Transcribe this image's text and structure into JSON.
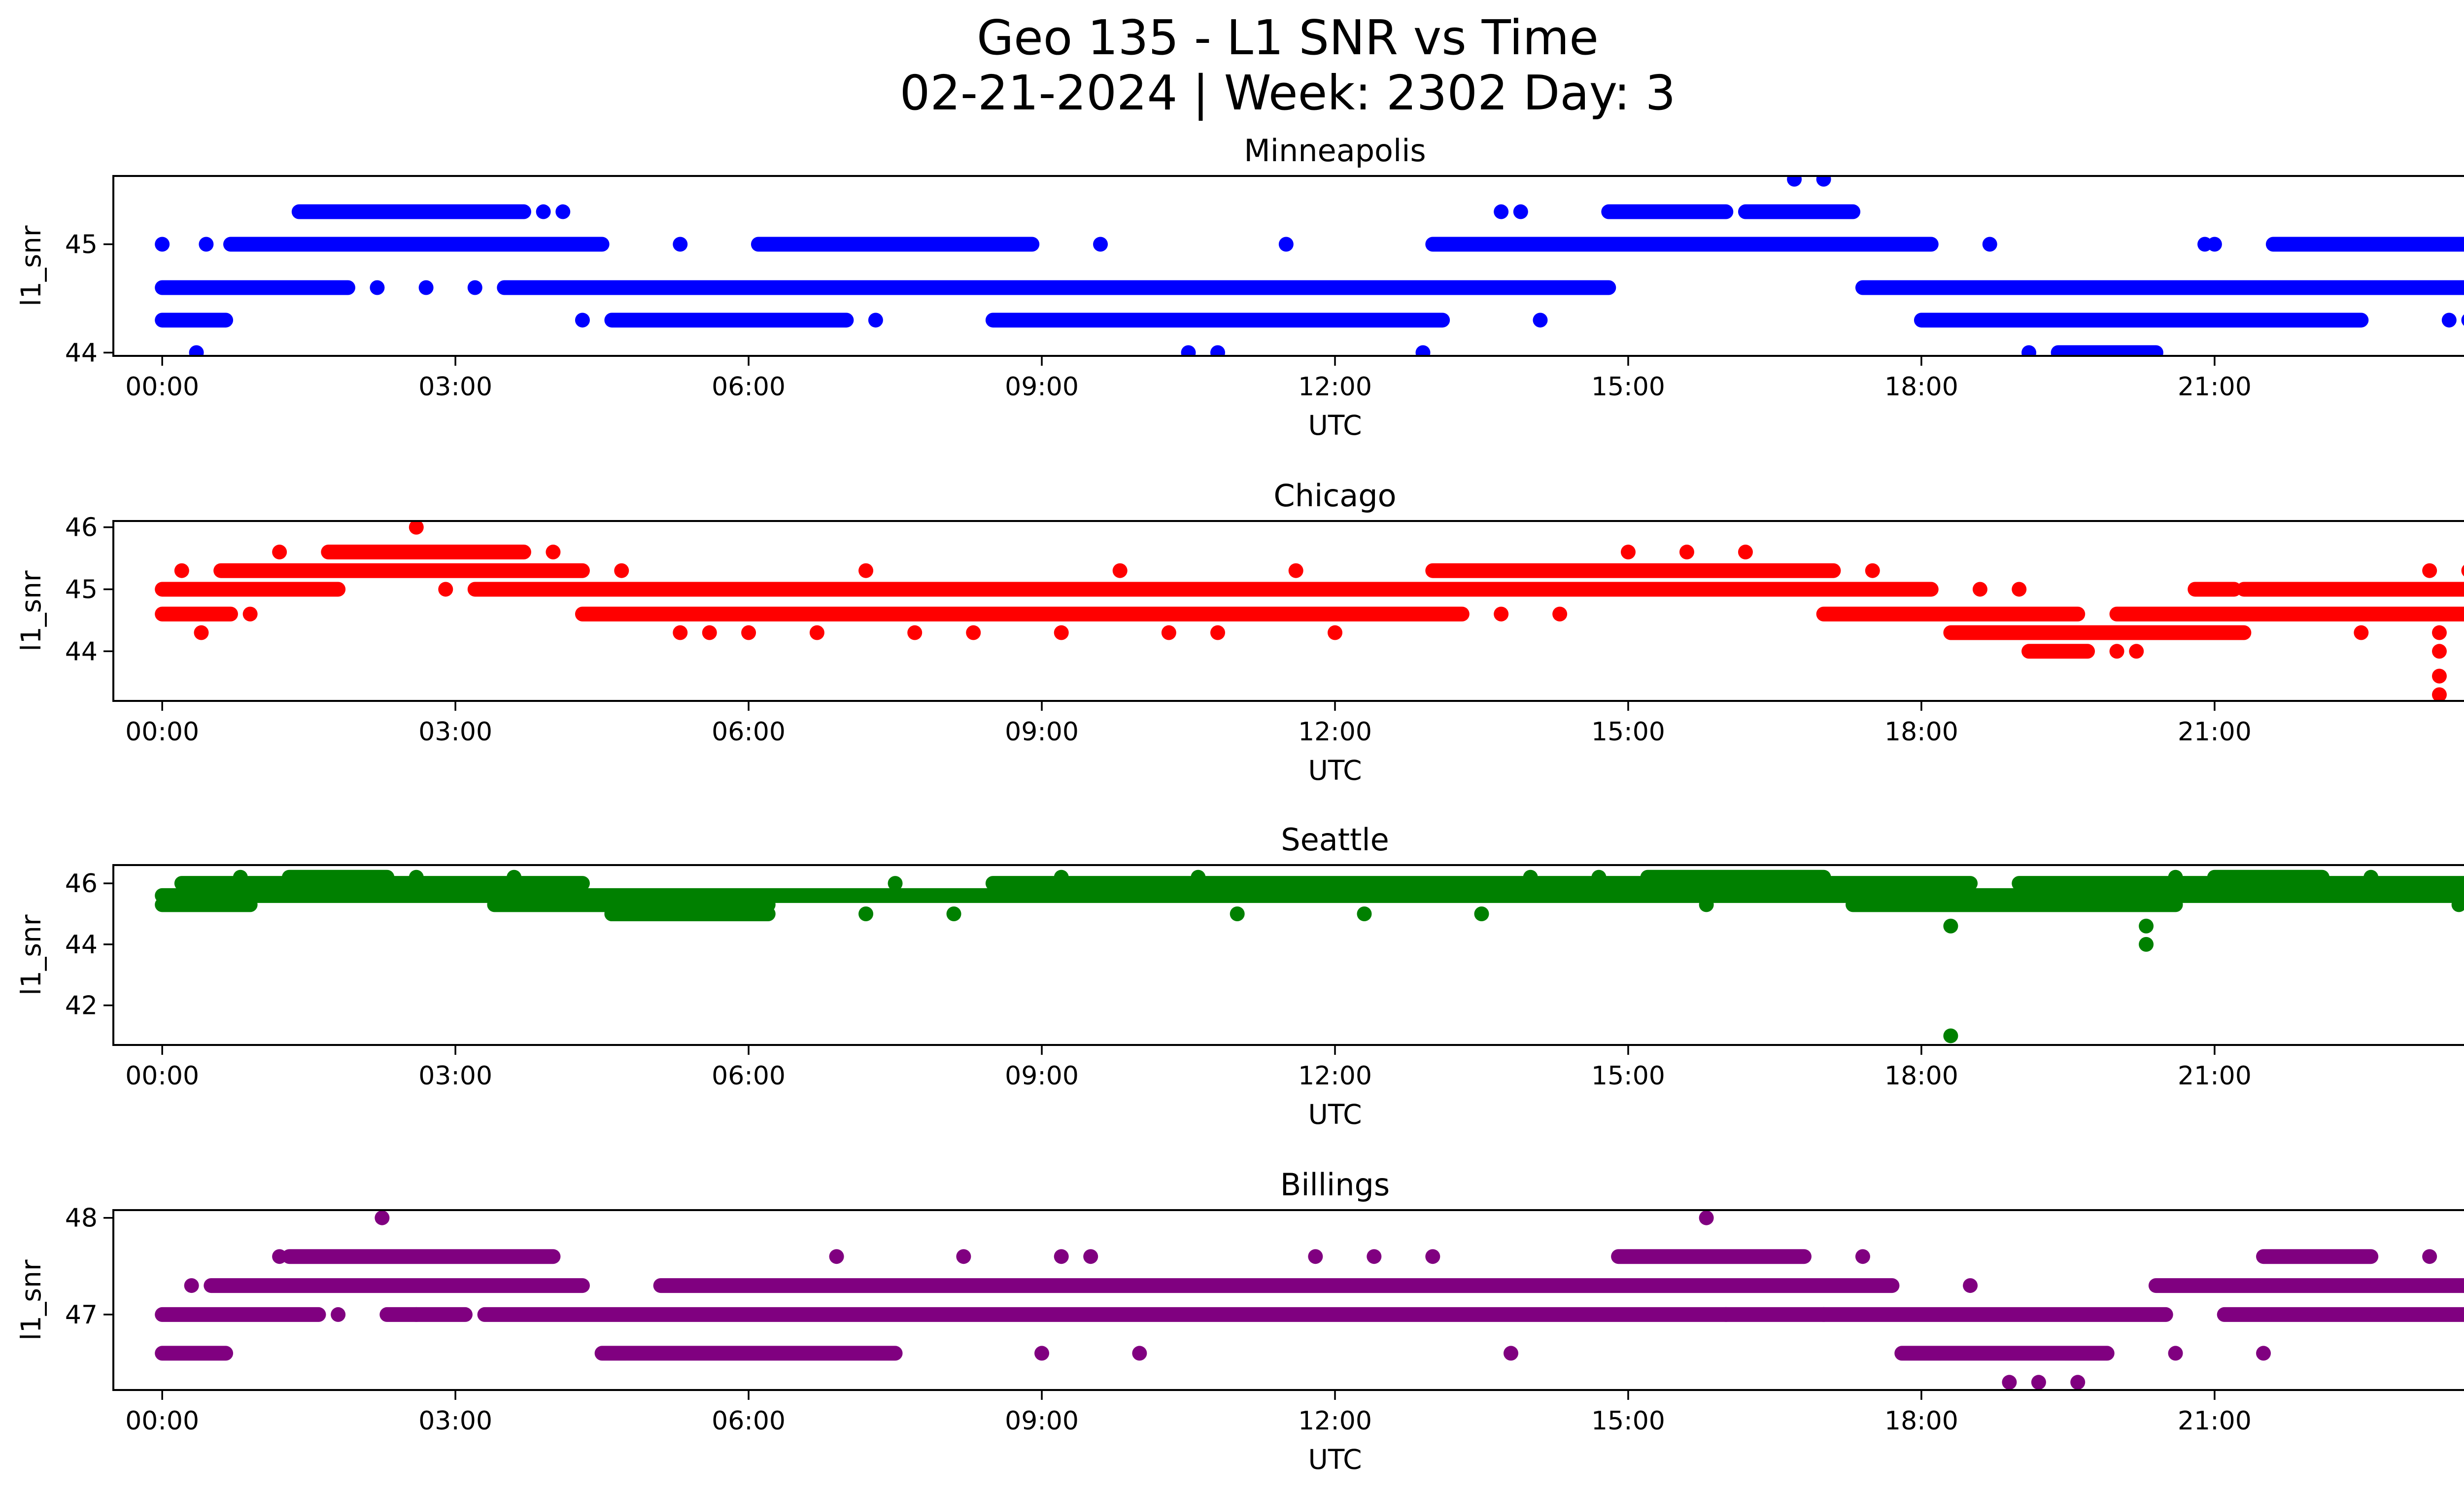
{
  "figure": {
    "title_line1": "Geo 135 - L1 SNR vs Time",
    "title_line2": "02-21-2024 | Week: 2302 Day: 3"
  },
  "chart_data": [
    {
      "type": "scatter",
      "title": "Minneapolis",
      "xlabel": "UTC",
      "ylabel": "l1_snr",
      "color": "#0000ff",
      "xlim": [
        -0.5,
        24.5
      ],
      "ylim": [
        43.97,
        45.63
      ],
      "xticks": [
        "00:00",
        "03:00",
        "06:00",
        "09:00",
        "12:00",
        "15:00",
        "18:00",
        "21:00",
        "00:00"
      ],
      "yticks": [
        44,
        45
      ],
      "grid": false,
      "segments": [
        {
          "x0": 0.0,
          "x1": 0.65,
          "y": 44.3
        },
        {
          "x0": 0.0,
          "x1": 1.0,
          "y": 44.6
        },
        {
          "x0": 0.7,
          "x1": 4.5,
          "y": 45.0
        },
        {
          "x0": 1.4,
          "x1": 3.7,
          "y": 45.3
        },
        {
          "x0": 0.3,
          "x1": 1.9,
          "y": 44.6
        },
        {
          "x0": 3.5,
          "x1": 14.8,
          "y": 44.6
        },
        {
          "x0": 4.6,
          "x1": 7.0,
          "y": 44.3
        },
        {
          "x0": 6.1,
          "x1": 8.9,
          "y": 45.0
        },
        {
          "x0": 8.5,
          "x1": 13.1,
          "y": 44.3
        },
        {
          "x0": 13.0,
          "x1": 18.1,
          "y": 45.0
        },
        {
          "x0": 14.8,
          "x1": 16.0,
          "y": 45.3
        },
        {
          "x0": 16.2,
          "x1": 17.3,
          "y": 45.3
        },
        {
          "x0": 17.4,
          "x1": 20.0,
          "y": 44.6
        },
        {
          "x0": 18.0,
          "x1": 22.5,
          "y": 44.3
        },
        {
          "x0": 19.4,
          "x1": 20.4,
          "y": 44.0
        },
        {
          "x0": 20.0,
          "x1": 24.0,
          "y": 44.6
        },
        {
          "x0": 21.6,
          "x1": 24.0,
          "y": 45.0
        }
      ],
      "points": [
        {
          "x": 0.0,
          "y": 45.0
        },
        {
          "x": 0.35,
          "y": 44.0
        },
        {
          "x": 0.45,
          "y": 45.0
        },
        {
          "x": 2.2,
          "y": 44.6
        },
        {
          "x": 2.7,
          "y": 44.6
        },
        {
          "x": 3.2,
          "y": 44.6
        },
        {
          "x": 3.9,
          "y": 45.3
        },
        {
          "x": 4.1,
          "y": 45.3
        },
        {
          "x": 4.3,
          "y": 44.3
        },
        {
          "x": 5.3,
          "y": 45.0
        },
        {
          "x": 7.3,
          "y": 44.3
        },
        {
          "x": 9.6,
          "y": 45.0
        },
        {
          "x": 10.5,
          "y": 44.0
        },
        {
          "x": 10.8,
          "y": 44.0
        },
        {
          "x": 11.5,
          "y": 45.0
        },
        {
          "x": 12.9,
          "y": 44.0
        },
        {
          "x": 13.7,
          "y": 45.3
        },
        {
          "x": 13.9,
          "y": 45.3
        },
        {
          "x": 14.1,
          "y": 44.3
        },
        {
          "x": 16.7,
          "y": 45.6
        },
        {
          "x": 17.0,
          "y": 45.6
        },
        {
          "x": 18.7,
          "y": 45.0
        },
        {
          "x": 19.1,
          "y": 44.0
        },
        {
          "x": 20.9,
          "y": 45.0
        },
        {
          "x": 21.0,
          "y": 45.0
        },
        {
          "x": 22.4,
          "y": 44.3
        },
        {
          "x": 23.4,
          "y": 44.3
        },
        {
          "x": 23.6,
          "y": 44.3
        },
        {
          "x": 23.9,
          "y": 44.3
        }
      ]
    },
    {
      "type": "scatter",
      "title": "Chicago",
      "xlabel": "UTC",
      "ylabel": "l1_snr",
      "color": "#ff0000",
      "xlim": [
        -0.5,
        24.5
      ],
      "ylim": [
        43.2,
        46.1
      ],
      "xticks": [
        "00:00",
        "03:00",
        "06:00",
        "09:00",
        "12:00",
        "15:00",
        "18:00",
        "21:00",
        "00:00"
      ],
      "yticks": [
        44,
        45,
        46
      ],
      "grid": false,
      "segments": [
        {
          "x0": 0.0,
          "x1": 1.8,
          "y": 45.0
        },
        {
          "x0": 0.0,
          "x1": 0.7,
          "y": 44.6
        },
        {
          "x0": 0.6,
          "x1": 4.3,
          "y": 45.3
        },
        {
          "x0": 1.7,
          "x1": 3.7,
          "y": 45.6
        },
        {
          "x0": 3.2,
          "x1": 18.1,
          "y": 45.0
        },
        {
          "x0": 4.3,
          "x1": 13.3,
          "y": 44.6
        },
        {
          "x0": 13.0,
          "x1": 17.1,
          "y": 45.3
        },
        {
          "x0": 17.0,
          "x1": 19.6,
          "y": 44.6
        },
        {
          "x0": 18.3,
          "x1": 20.3,
          "y": 44.3
        },
        {
          "x0": 19.1,
          "x1": 19.7,
          "y": 44.0
        },
        {
          "x0": 20.0,
          "x1": 24.0,
          "y": 44.6
        },
        {
          "x0": 20.2,
          "x1": 21.3,
          "y": 44.3
        },
        {
          "x0": 21.3,
          "x1": 24.0,
          "y": 45.0
        },
        {
          "x0": 23.6,
          "x1": 24.0,
          "y": 45.3
        },
        {
          "x0": 20.8,
          "x1": 21.2,
          "y": 45.0
        }
      ],
      "points": [
        {
          "x": 0.2,
          "y": 45.3
        },
        {
          "x": 0.4,
          "y": 44.3
        },
        {
          "x": 0.9,
          "y": 44.6
        },
        {
          "x": 1.2,
          "y": 45.6
        },
        {
          "x": 2.6,
          "y": 46.0
        },
        {
          "x": 2.9,
          "y": 45.0
        },
        {
          "x": 3.3,
          "y": 45.0
        },
        {
          "x": 4.0,
          "y": 45.6
        },
        {
          "x": 4.7,
          "y": 45.3
        },
        {
          "x": 5.3,
          "y": 44.3
        },
        {
          "x": 5.6,
          "y": 44.3
        },
        {
          "x": 6.0,
          "y": 44.3
        },
        {
          "x": 6.7,
          "y": 44.3
        },
        {
          "x": 7.2,
          "y": 45.3
        },
        {
          "x": 7.7,
          "y": 44.3
        },
        {
          "x": 8.3,
          "y": 44.3
        },
        {
          "x": 9.2,
          "y": 44.3
        },
        {
          "x": 9.8,
          "y": 45.3
        },
        {
          "x": 10.3,
          "y": 44.3
        },
        {
          "x": 10.8,
          "y": 44.3
        },
        {
          "x": 11.6,
          "y": 45.3
        },
        {
          "x": 12.0,
          "y": 44.3
        },
        {
          "x": 13.7,
          "y": 44.6
        },
        {
          "x": 14.3,
          "y": 44.6
        },
        {
          "x": 15.0,
          "y": 45.6
        },
        {
          "x": 15.6,
          "y": 45.6
        },
        {
          "x": 16.2,
          "y": 45.6
        },
        {
          "x": 17.5,
          "y": 45.3
        },
        {
          "x": 18.6,
          "y": 45.0
        },
        {
          "x": 19.0,
          "y": 45.0
        },
        {
          "x": 20.0,
          "y": 44.0
        },
        {
          "x": 20.2,
          "y": 44.0
        },
        {
          "x": 22.5,
          "y": 44.3
        },
        {
          "x": 23.2,
          "y": 45.3
        },
        {
          "x": 23.3,
          "y": 44.3
        },
        {
          "x": 23.3,
          "y": 44.0
        },
        {
          "x": 23.3,
          "y": 43.6
        },
        {
          "x": 23.3,
          "y": 43.3
        },
        {
          "x": 23.8,
          "y": 44.6
        }
      ]
    },
    {
      "type": "scatter",
      "title": "Seattle",
      "xlabel": "UTC",
      "ylabel": "l1_snr",
      "color": "#008000",
      "xlim": [
        -0.5,
        24.5
      ],
      "ylim": [
        40.7,
        46.6
      ],
      "xticks": [
        "00:00",
        "03:00",
        "06:00",
        "09:00",
        "12:00",
        "15:00",
        "18:00",
        "21:00",
        "00:00"
      ],
      "yticks": [
        42,
        44,
        46
      ],
      "grid": false,
      "segments": [
        {
          "x0": 0.0,
          "x1": 24.0,
          "y": 45.6
        },
        {
          "x0": 0.2,
          "x1": 4.3,
          "y": 46.0
        },
        {
          "x0": 0.0,
          "x1": 0.9,
          "y": 45.3
        },
        {
          "x0": 1.3,
          "x1": 2.3,
          "y": 46.2
        },
        {
          "x0": 3.4,
          "x1": 6.2,
          "y": 45.3
        },
        {
          "x0": 4.6,
          "x1": 6.2,
          "y": 45.0
        },
        {
          "x0": 8.5,
          "x1": 18.5,
          "y": 46.0
        },
        {
          "x0": 15.2,
          "x1": 17.0,
          "y": 46.2
        },
        {
          "x0": 17.3,
          "x1": 20.6,
          "y": 45.3
        },
        {
          "x0": 19.0,
          "x1": 24.0,
          "y": 46.0
        },
        {
          "x0": 21.0,
          "x1": 22.1,
          "y": 46.2
        }
      ],
      "points": [
        {
          "x": 0.8,
          "y": 46.2
        },
        {
          "x": 2.6,
          "y": 46.2
        },
        {
          "x": 3.6,
          "y": 46.2
        },
        {
          "x": 4.6,
          "y": 45.0
        },
        {
          "x": 7.2,
          "y": 45.0
        },
        {
          "x": 7.5,
          "y": 46.0
        },
        {
          "x": 8.1,
          "y": 45.0
        },
        {
          "x": 9.2,
          "y": 46.2
        },
        {
          "x": 10.6,
          "y": 46.2
        },
        {
          "x": 11.0,
          "y": 45.0
        },
        {
          "x": 12.3,
          "y": 45.0
        },
        {
          "x": 13.5,
          "y": 45.0
        },
        {
          "x": 14.0,
          "y": 46.2
        },
        {
          "x": 14.7,
          "y": 46.2
        },
        {
          "x": 15.8,
          "y": 45.3
        },
        {
          "x": 18.3,
          "y": 44.6
        },
        {
          "x": 18.3,
          "y": 41.0
        },
        {
          "x": 20.3,
          "y": 44.6
        },
        {
          "x": 20.3,
          "y": 44.0
        },
        {
          "x": 20.6,
          "y": 46.2
        },
        {
          "x": 22.6,
          "y": 46.2
        },
        {
          "x": 23.5,
          "y": 45.3
        }
      ]
    },
    {
      "type": "scatter",
      "title": "Billings",
      "xlabel": "UTC",
      "ylabel": "l1_snr",
      "color": "#800080",
      "xlim": [
        -0.5,
        24.5
      ],
      "ylim": [
        46.22,
        48.08
      ],
      "xticks": [
        "00:00",
        "03:00",
        "06:00",
        "09:00",
        "12:00",
        "15:00",
        "18:00",
        "21:00",
        "00:00"
      ],
      "yticks": [
        47,
        48
      ],
      "grid": false,
      "segments": [
        {
          "x0": 0.0,
          "x1": 1.6,
          "y": 47.0
        },
        {
          "x0": 0.0,
          "x1": 0.65,
          "y": 46.6
        },
        {
          "x0": 0.5,
          "x1": 4.3,
          "y": 47.3
        },
        {
          "x0": 1.3,
          "x1": 4.0,
          "y": 47.6
        },
        {
          "x0": 2.3,
          "x1": 3.1,
          "y": 47.0
        },
        {
          "x0": 3.3,
          "x1": 20.5,
          "y": 47.0
        },
        {
          "x0": 4.5,
          "x1": 7.5,
          "y": 46.6
        },
        {
          "x0": 5.1,
          "x1": 17.7,
          "y": 47.3
        },
        {
          "x0": 14.9,
          "x1": 16.8,
          "y": 47.6
        },
        {
          "x0": 17.8,
          "x1": 19.9,
          "y": 46.6
        },
        {
          "x0": 20.4,
          "x1": 24.0,
          "y": 47.3
        },
        {
          "x0": 21.1,
          "x1": 24.0,
          "y": 47.0
        },
        {
          "x0": 21.5,
          "x1": 22.6,
          "y": 47.6
        }
      ],
      "points": [
        {
          "x": 0.3,
          "y": 47.3
        },
        {
          "x": 1.2,
          "y": 47.6
        },
        {
          "x": 1.8,
          "y": 47.0
        },
        {
          "x": 2.25,
          "y": 48.0
        },
        {
          "x": 2.6,
          "y": 47.0
        },
        {
          "x": 6.9,
          "y": 47.6
        },
        {
          "x": 8.2,
          "y": 47.6
        },
        {
          "x": 9.0,
          "y": 46.6
        },
        {
          "x": 9.2,
          "y": 47.6
        },
        {
          "x": 9.5,
          "y": 47.6
        },
        {
          "x": 10.0,
          "y": 46.6
        },
        {
          "x": 11.8,
          "y": 47.6
        },
        {
          "x": 12.4,
          "y": 47.6
        },
        {
          "x": 13.0,
          "y": 47.6
        },
        {
          "x": 13.8,
          "y": 46.6
        },
        {
          "x": 15.8,
          "y": 48.0
        },
        {
          "x": 16.0,
          "y": 47.0
        },
        {
          "x": 17.0,
          "y": 47.0
        },
        {
          "x": 17.4,
          "y": 47.6
        },
        {
          "x": 18.5,
          "y": 47.3
        },
        {
          "x": 18.9,
          "y": 46.3
        },
        {
          "x": 19.2,
          "y": 46.3
        },
        {
          "x": 19.6,
          "y": 46.3
        },
        {
          "x": 20.6,
          "y": 46.6
        },
        {
          "x": 21.5,
          "y": 46.6
        },
        {
          "x": 23.2,
          "y": 47.6
        },
        {
          "x": 23.9,
          "y": 46.6
        }
      ]
    }
  ]
}
